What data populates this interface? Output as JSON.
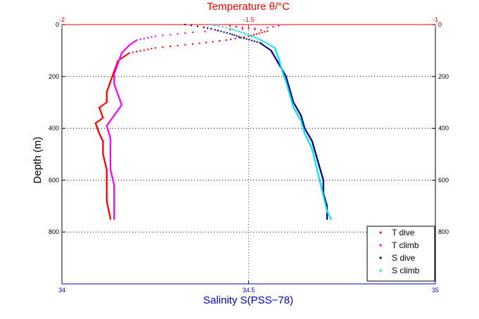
{
  "chart_data": {
    "type": "scatter",
    "title": "",
    "top_axis": {
      "label": "Temperature θ/°C",
      "ticks": [
        "-2",
        "-1.5",
        "-1"
      ],
      "range": [
        -2,
        -1
      ],
      "color": "#ff0000"
    },
    "bottom_axis": {
      "label": "Salinity S(PSS−78)",
      "ticks": [
        "34",
        "34.5",
        "35"
      ],
      "range": [
        34,
        35
      ],
      "color": "#0000cc"
    },
    "y_axis": {
      "label": "Depth (m)",
      "ticks": [
        "0",
        "200",
        "400",
        "600",
        "800"
      ],
      "range": [
        0,
        1000
      ],
      "reversed": true
    },
    "grid": true,
    "legend_position": "bottom-right",
    "series": [
      {
        "name": "T dive",
        "axis": "top",
        "color": "#ff0000",
        "points": [
          [
            -1.55,
            5
          ],
          [
            -1.5,
            15
          ],
          [
            -1.45,
            25
          ],
          [
            -1.5,
            45
          ],
          [
            -1.56,
            60
          ],
          [
            -1.65,
            75
          ],
          [
            -1.75,
            90
          ],
          [
            -1.82,
            110
          ],
          [
            -1.85,
            140
          ],
          [
            -1.86,
            180
          ],
          [
            -1.87,
            220
          ],
          [
            -1.88,
            260
          ],
          [
            -1.88,
            300
          ],
          [
            -1.9,
            320
          ],
          [
            -1.89,
            360
          ],
          [
            -1.91,
            380
          ],
          [
            -1.9,
            420
          ],
          [
            -1.89,
            450
          ],
          [
            -1.89,
            500
          ],
          [
            -1.88,
            560
          ],
          [
            -1.88,
            620
          ],
          [
            -1.88,
            680
          ],
          [
            -1.87,
            750
          ]
        ]
      },
      {
        "name": "T climb",
        "axis": "top",
        "color": "#ff00ff",
        "points": [
          [
            -1.42,
            5
          ],
          [
            -1.45,
            12
          ],
          [
            -1.55,
            20
          ],
          [
            -1.65,
            30
          ],
          [
            -1.75,
            45
          ],
          [
            -1.8,
            60
          ],
          [
            -1.82,
            80
          ],
          [
            -1.84,
            110
          ],
          [
            -1.85,
            150
          ],
          [
            -1.86,
            190
          ],
          [
            -1.86,
            230
          ],
          [
            -1.85,
            270
          ],
          [
            -1.84,
            310
          ],
          [
            -1.86,
            350
          ],
          [
            -1.88,
            390
          ],
          [
            -1.87,
            440
          ],
          [
            -1.87,
            500
          ],
          [
            -1.87,
            560
          ],
          [
            -1.86,
            620
          ],
          [
            -1.86,
            680
          ],
          [
            -1.86,
            750
          ]
        ]
      },
      {
        "name": "S dive",
        "axis": "bottom",
        "color": "#00008b",
        "points": [
          [
            34.33,
            0
          ],
          [
            34.38,
            10
          ],
          [
            34.41,
            20
          ],
          [
            34.45,
            35
          ],
          [
            34.48,
            50
          ],
          [
            34.53,
            70
          ],
          [
            34.56,
            100
          ],
          [
            34.58,
            150
          ],
          [
            34.6,
            200
          ],
          [
            34.61,
            250
          ],
          [
            34.62,
            300
          ],
          [
            34.64,
            350
          ],
          [
            34.65,
            400
          ],
          [
            34.67,
            450
          ],
          [
            34.68,
            500
          ],
          [
            34.69,
            550
          ],
          [
            34.7,
            600
          ],
          [
            34.7,
            650
          ],
          [
            34.71,
            700
          ],
          [
            34.71,
            750
          ]
        ]
      },
      {
        "name": "S climb",
        "axis": "bottom",
        "color": "#00e5ee",
        "points": [
          [
            34.4,
            0
          ],
          [
            34.45,
            15
          ],
          [
            34.48,
            30
          ],
          [
            34.51,
            45
          ],
          [
            34.54,
            65
          ],
          [
            34.57,
            90
          ],
          [
            34.58,
            130
          ],
          [
            34.59,
            180
          ],
          [
            34.6,
            220
          ],
          [
            34.61,
            270
          ],
          [
            34.62,
            320
          ],
          [
            34.64,
            370
          ],
          [
            34.65,
            420
          ],
          [
            34.67,
            480
          ],
          [
            34.68,
            540
          ],
          [
            34.69,
            600
          ],
          [
            34.7,
            660
          ],
          [
            34.71,
            720
          ],
          [
            34.72,
            750
          ]
        ]
      }
    ]
  }
}
